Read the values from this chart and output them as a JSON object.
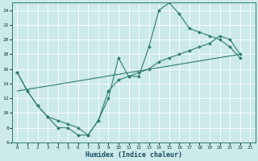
{
  "title": "",
  "xlabel": "Humidex (Indice chaleur)",
  "ylabel": "",
  "bg_color": "#cce9ec",
  "line_color": "#2e7d6e",
  "grid_color": "#b0d8dc",
  "xlim": [
    -0.5,
    23.5
  ],
  "ylim": [
    6,
    25
  ],
  "yticks": [
    6,
    8,
    10,
    12,
    14,
    16,
    18,
    20,
    22,
    24
  ],
  "xticks": [
    0,
    1,
    2,
    3,
    4,
    5,
    6,
    7,
    8,
    9,
    10,
    11,
    12,
    13,
    14,
    15,
    16,
    17,
    18,
    19,
    20,
    21,
    22,
    23
  ],
  "line1_x": [
    0,
    1,
    2,
    3,
    4,
    5,
    6,
    7,
    8,
    9,
    10,
    11,
    12,
    13,
    14,
    15,
    16,
    17,
    18,
    19,
    20,
    21,
    22
  ],
  "line1_y": [
    15.5,
    13,
    11,
    9.5,
    8,
    8,
    7,
    7,
    9,
    12,
    17.5,
    15,
    15,
    19,
    24,
    25,
    23.5,
    21.5,
    21,
    20.5,
    20,
    19,
    17.5
  ],
  "line2_x": [
    0,
    1,
    2,
    3,
    4,
    5,
    6,
    7,
    8,
    9,
    10,
    11,
    12,
    13,
    14,
    15,
    16,
    17,
    18,
    19,
    20,
    21,
    22
  ],
  "line2_y": [
    15.5,
    13,
    11,
    9.5,
    9,
    8.5,
    8,
    7,
    9,
    13,
    14.5,
    15,
    15.5,
    16,
    17,
    17.5,
    18,
    18.5,
    19,
    19.5,
    20.5,
    20,
    18
  ],
  "line3_x": [
    0,
    22
  ],
  "line3_y": [
    13,
    18
  ]
}
